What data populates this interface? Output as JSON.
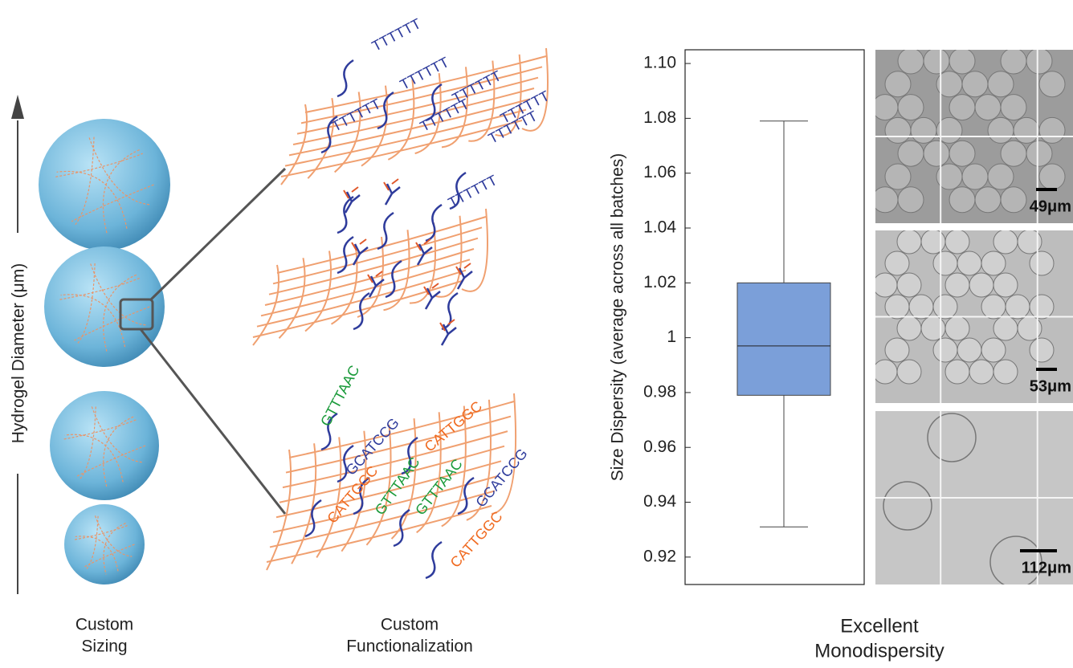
{
  "chart_data": {
    "type": "box",
    "ylabel": "Size Dispersity (average across all batches)",
    "ylim": [
      0.91,
      1.105
    ],
    "yticks": [
      0.92,
      0.94,
      0.96,
      0.98,
      1,
      1.02,
      1.04,
      1.06,
      1.08,
      {
        "value": 1.1,
        "label": "1.10"
      }
    ],
    "stats": {
      "min": 0.931,
      "q1": 0.979,
      "median": 0.997,
      "q3": 1.02,
      "max": 1.079
    },
    "color": "#7b9fd9"
  },
  "diagram": {
    "axis_label": "Hydrogel Diameter (μm)",
    "sizing_label": [
      "Custom",
      "Sizing"
    ],
    "functionalization_label": [
      "Custom",
      "Functionalization"
    ],
    "monodispersity_label": [
      "Excellent",
      "Monodispersity"
    ],
    "polyT": [
      "TTTTTT",
      "TTTTTT",
      "TTTTTT",
      "TTTTTT",
      "TTTTTT",
      "TTTTTT",
      "TTTTTT",
      "TTTTTT"
    ],
    "sequences": [
      "GTTTAAC",
      "GCATCCG",
      "CATTGGC",
      "CATTGGC",
      "GTTTAAC",
      "GTTTAAC",
      "GCATCCG",
      "CATTGGC"
    ],
    "scale_bars": [
      "49μm",
      "53μm",
      "112μm"
    ]
  }
}
